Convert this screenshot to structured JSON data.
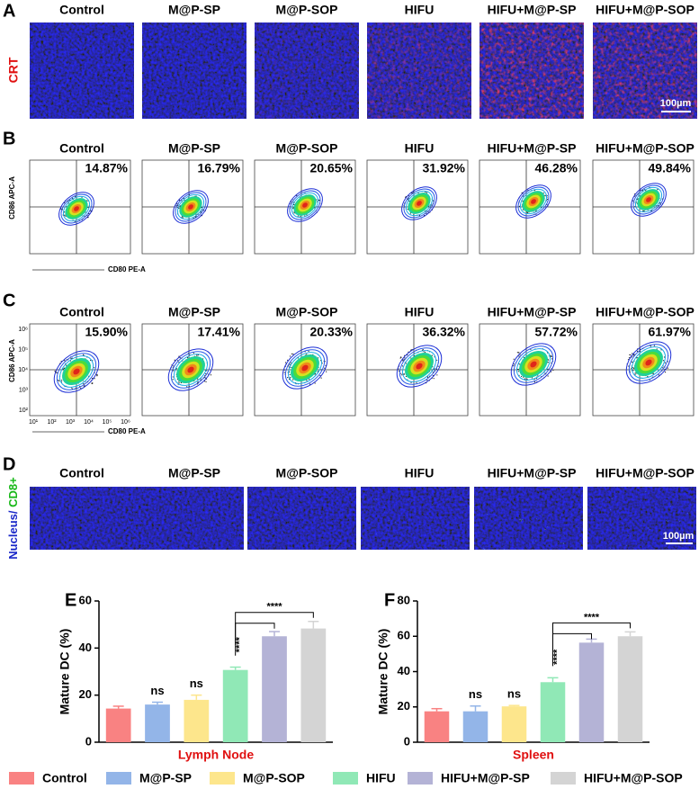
{
  "column_titles": [
    "Control",
    "M@P-SP",
    "M@P-SOP",
    "HIFU",
    "HIFU+M@P-SP",
    "HIFU+M@P-SOP"
  ],
  "panel_a": {
    "letter": "A",
    "row_label": "CRT",
    "scale_bar": "100µm"
  },
  "panel_b": {
    "letter": "B",
    "y_label": "CD86 APC-A",
    "x_label": "CD80 PE-A",
    "percentages": [
      "14.87%",
      "16.79%",
      "20.65%",
      "31.92%",
      "46.28%",
      "49.84%"
    ]
  },
  "panel_c": {
    "letter": "C",
    "y_label": "CD86 APC-A",
    "x_label": "CD80 PE-A",
    "percentages": [
      "15.90%",
      "17.41%",
      "20.33%",
      "36.32%",
      "57.72%",
      "61.97%"
    ],
    "x_tick_labels": [
      "10¹",
      "10²",
      "10³",
      "10⁴",
      "10⁵",
      "10⁶"
    ],
    "y_tick_labels": [
      "10⁶",
      "10⁵",
      "10⁴",
      "10³",
      "10²"
    ]
  },
  "panel_d": {
    "letter": "D",
    "row_label_1": "Nucleus/",
    "row_label_2": "CD8+",
    "scale_bar": "100µm"
  },
  "chart_data": [
    {
      "type": "bar",
      "letter": "E",
      "y_label": "Mature DC (%)",
      "x_label": "Lymph Node",
      "categories": [
        "Control",
        "M@P-SP",
        "M@P-SOP",
        "HIFU",
        "HIFU+M@P-SP",
        "HIFU+M@P-SOP"
      ],
      "colors": [
        "#f98282",
        "#93b5e8",
        "#fde68c",
        "#90e8b6",
        "#b4b3d6",
        "#d4d4d4"
      ],
      "values": [
        14.3,
        16.0,
        18.0,
        30.7,
        45.0,
        48.3
      ],
      "errors": [
        1.0,
        1.0,
        2.0,
        1.2,
        2.0,
        3.0
      ],
      "annotations": [
        "ns",
        "ns",
        "****",
        "****"
      ],
      "ylim": [
        0,
        60
      ],
      "yticks": [
        0,
        20,
        40,
        60
      ]
    },
    {
      "type": "bar",
      "letter": "F",
      "y_label": "Mature DC (%)",
      "x_label": "Spleen",
      "categories": [
        "Control",
        "M@P-SP",
        "M@P-SOP",
        "HIFU",
        "HIFU+M@P-SP",
        "HIFU+M@P-SOP"
      ],
      "colors": [
        "#f98282",
        "#93b5e8",
        "#fde68c",
        "#90e8b6",
        "#b4b3d6",
        "#d4d4d4"
      ],
      "values": [
        17.5,
        17.5,
        20.3,
        34.0,
        56.4,
        60.0
      ],
      "errors": [
        1.5,
        3.0,
        0.5,
        2.5,
        2.0,
        2.5
      ],
      "annotations": [
        "ns",
        "ns",
        "****",
        "****"
      ],
      "ylim": [
        0,
        80
      ],
      "yticks": [
        0,
        20,
        40,
        60,
        80
      ]
    }
  ]
}
